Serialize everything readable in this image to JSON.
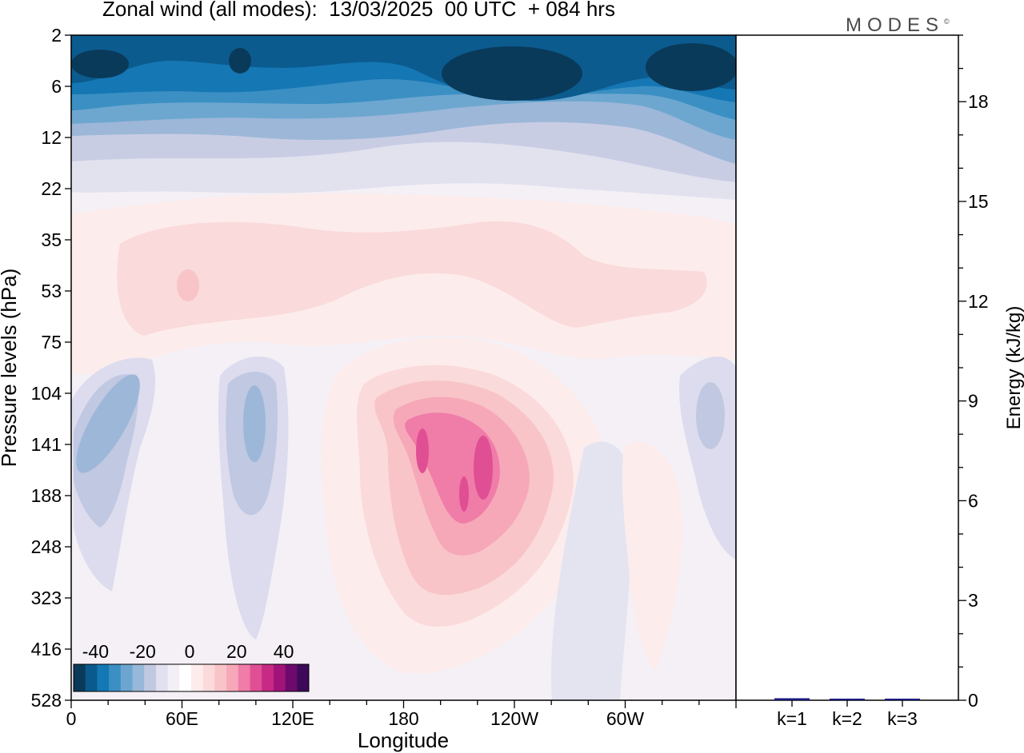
{
  "header": {
    "title": "Zonal wind (all modes):  13/03/2025  00 UTC  + 084 hrs",
    "logo": "MODES"
  },
  "chart_data": [
    {
      "type": "heatmap",
      "title": "Zonal wind (all modes):  13/03/2025  00 UTC  + 084 hrs",
      "xlabel": "Longitude",
      "ylabel": "Pressure levels (hPa)",
      "x_ticks": [
        "0",
        "60E",
        "120E",
        "180",
        "120W",
        "60W"
      ],
      "x_tick_degrees": [
        0,
        60,
        120,
        180,
        240,
        300
      ],
      "xlim": [
        0,
        360
      ],
      "y_ticks": [
        2,
        6,
        12,
        22,
        35,
        53,
        75,
        104,
        141,
        188,
        248,
        323,
        416,
        528
      ],
      "y_direction": "pressure decreasing upward",
      "colorbar": {
        "ticks": [
          -40,
          -20,
          0,
          20,
          40
        ],
        "levels": [
          -45,
          -40,
          -35,
          -30,
          -25,
          -20,
          -15,
          -10,
          -5,
          0,
          5,
          10,
          15,
          20,
          25,
          30,
          35,
          40,
          45
        ],
        "colors": [
          "#0a3a5a",
          "#0a5a8e",
          "#1478b4",
          "#3c8fc2",
          "#6ca5cf",
          "#98b8d9",
          "#c0c8e2",
          "#e0e0ee",
          "#f2f0f6",
          "#ffffff",
          "#fdecec",
          "#fadada",
          "#f8c4c8",
          "#f6a8b8",
          "#f07ca8",
          "#e04f94",
          "#c72a84",
          "#a0147a",
          "#6e0a6e",
          "#3c0a58"
        ]
      },
      "features": [
        {
          "region": "upper stratosphere (2-10 hPa)",
          "range": "-20 to -45",
          "note": "strongest easterlies near 0-25E, 160W-120W and 60W-0"
        },
        {
          "region": "35-75 hPa band",
          "range": "5 to 15"
        },
        {
          "region": "jet core near 180-120W, 104-248 hPa",
          "range": "up to about 30"
        },
        {
          "region": "west Pacific / Africa 75-250 hPa",
          "range": "-5 to -15"
        }
      ]
    },
    {
      "type": "bar",
      "categories": [
        "k=1",
        "k=2",
        "k=3"
      ],
      "values": [
        0.06,
        0.02,
        0.03
      ],
      "ylabel": "Energy (kJ/kg)",
      "ylim": [
        0,
        20
      ],
      "y_ticks": [
        0,
        3,
        6,
        9,
        12,
        15,
        18
      ],
      "colors": [
        "#1a1a80",
        "#1a1a80",
        "#1a1a80"
      ]
    }
  ]
}
